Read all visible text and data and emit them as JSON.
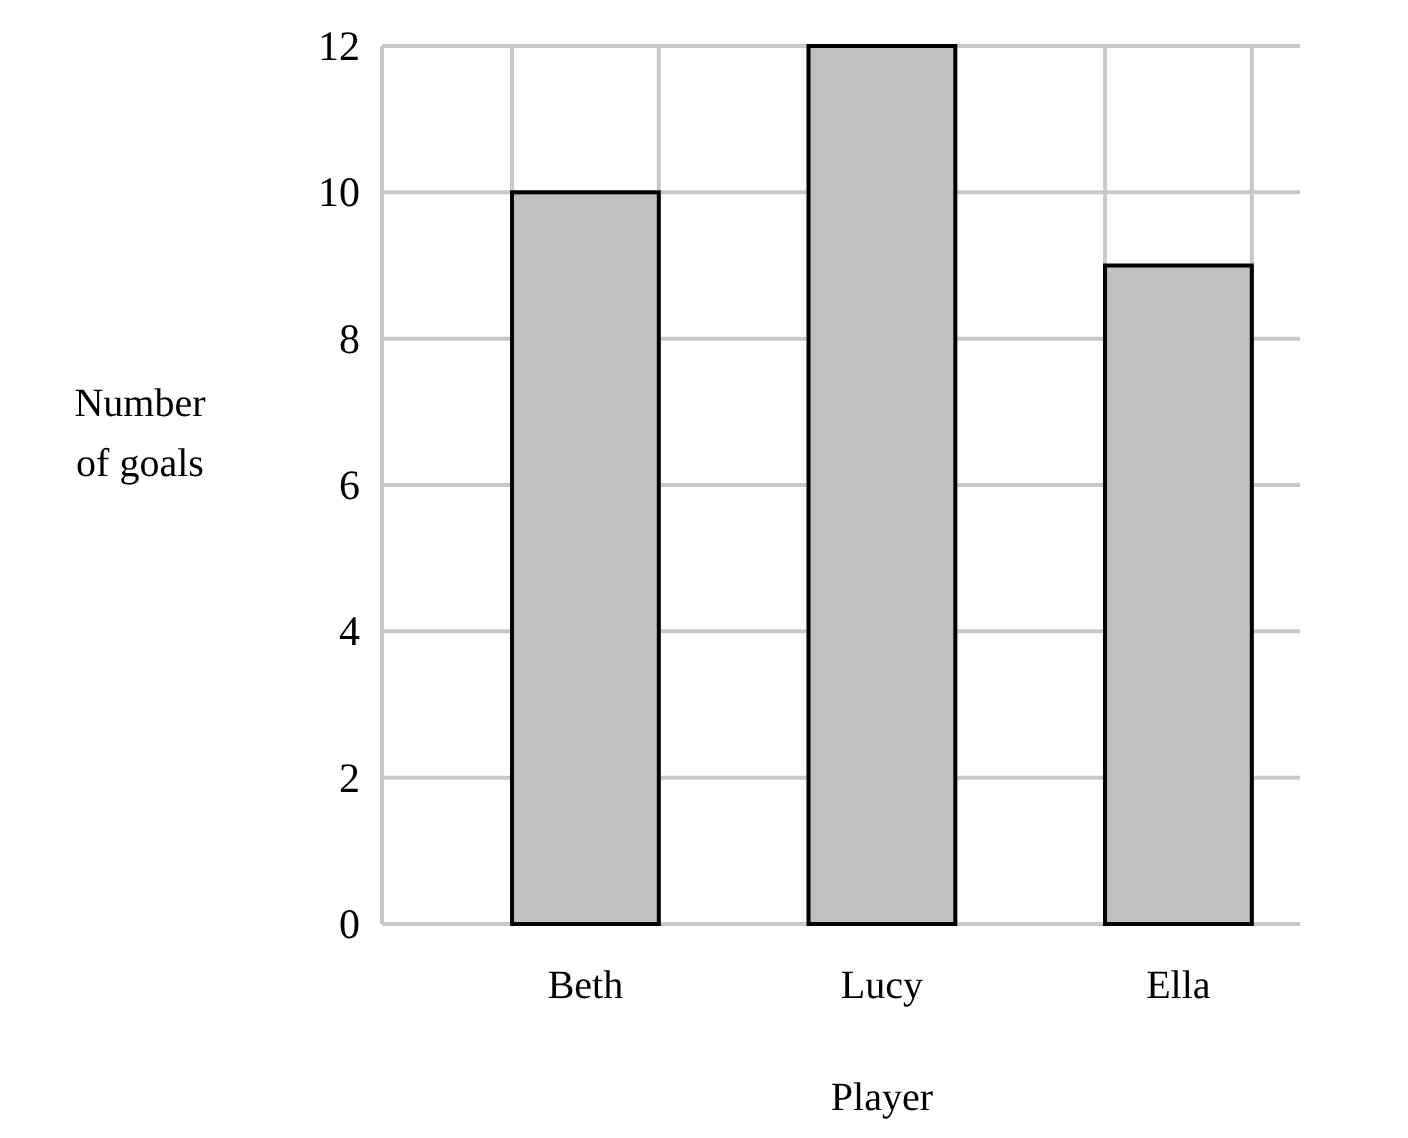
{
  "chart_data": {
    "type": "bar",
    "categories": [
      "Beth",
      "Lucy",
      "Ella"
    ],
    "values": [
      10,
      12,
      9
    ],
    "color": "#c0c0c0",
    "xlabel": "Player",
    "ylabel": "Number of goals",
    "ylim": [
      0,
      12
    ],
    "yticks": [
      0,
      2,
      4,
      6,
      8,
      10,
      12
    ],
    "grid": true
  }
}
